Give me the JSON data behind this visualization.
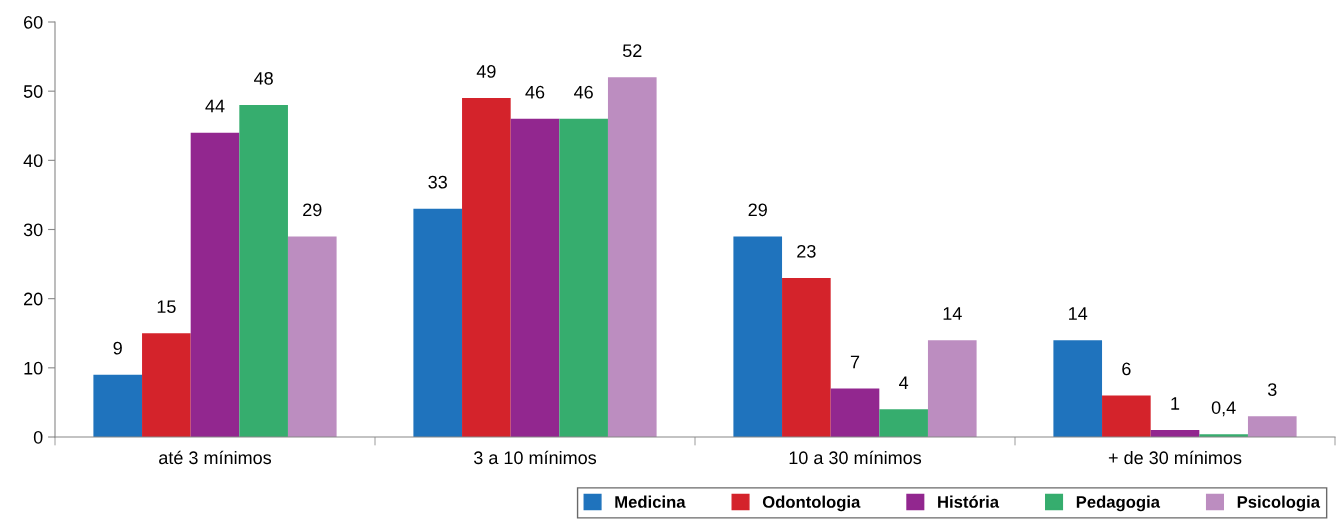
{
  "chart_data": {
    "type": "bar",
    "categories": [
      "até 3 mínimos",
      "3 a 10 mínimos",
      "10 a 30 mínimos",
      "+ de 30 mínimos"
    ],
    "series": [
      {
        "name": "Medicina",
        "color": "#1f73bd",
        "values": [
          9,
          33,
          29,
          14
        ],
        "value_labels": [
          "9",
          "33",
          "29",
          "14"
        ]
      },
      {
        "name": "Odontologia",
        "color": "#d4232b",
        "values": [
          15,
          49,
          23,
          6
        ],
        "value_labels": [
          "15",
          "49",
          "23",
          "6"
        ]
      },
      {
        "name": "História",
        "color": "#92278f",
        "values": [
          44,
          46,
          7,
          1
        ],
        "value_labels": [
          "44",
          "46",
          "7",
          "1"
        ]
      },
      {
        "name": "Pedagogia",
        "color": "#36ad6e",
        "values": [
          48,
          46,
          4,
          0.4
        ],
        "value_labels": [
          "48",
          "46",
          "4",
          "0,4"
        ]
      },
      {
        "name": "Psicologia",
        "color": "#bc8dc0",
        "values": [
          29,
          52,
          14,
          3
        ],
        "value_labels": [
          "29",
          "52",
          "14",
          "3"
        ]
      }
    ],
    "ylim": [
      0,
      60
    ],
    "yticks": [
      0,
      10,
      20,
      30,
      40,
      50,
      60
    ],
    "grid": false,
    "legend": "bottom right"
  }
}
